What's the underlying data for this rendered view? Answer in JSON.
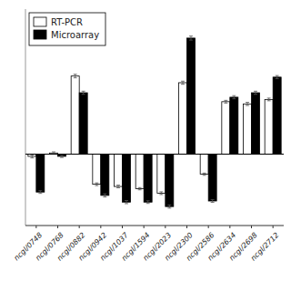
{
  "chart_data": {
    "type": "bar",
    "categories": [
      "ncgl/0748",
      "ncgl/0768",
      "ncgl/0882",
      "ncgl/0942",
      "ncgl/1037",
      "ncgl/1594",
      "ncgl/2023",
      "ncgl/2300",
      "ncgl/2586",
      "ncgl/2634",
      "ncgl/2698",
      "ncgl/2712"
    ],
    "series": [
      {
        "name": "RT-PCR",
        "color": "white",
        "values": [
          -0.1,
          0.05,
          3.5,
          -1.35,
          -1.45,
          -1.55,
          -1.75,
          3.2,
          -0.9,
          2.35,
          2.25,
          2.45
        ],
        "errors": [
          0.07,
          0.05,
          0.08,
          0.06,
          0.06,
          0.05,
          0.06,
          0.07,
          0.05,
          0.06,
          0.07,
          0.06
        ]
      },
      {
        "name": "Microarray",
        "color": "black",
        "values": [
          -1.7,
          -0.1,
          2.75,
          -1.85,
          -2.15,
          -2.15,
          -2.35,
          5.2,
          -2.1,
          2.55,
          2.75,
          3.45
        ],
        "errors": [
          0.06,
          0.05,
          0.07,
          0.07,
          0.07,
          0.06,
          0.07,
          0.09,
          0.06,
          0.07,
          0.07,
          0.07
        ]
      }
    ],
    "ylim": [
      -3.2,
      6.5
    ],
    "grid": false,
    "legend": "upper left",
    "tick_labels": "x"
  }
}
